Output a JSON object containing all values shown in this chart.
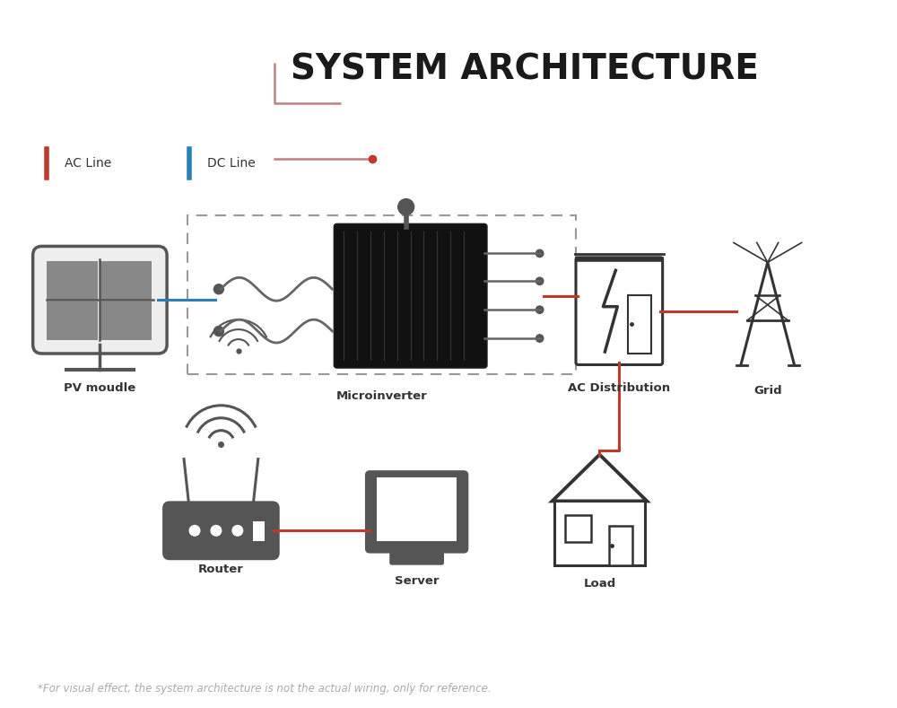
{
  "title": "SYSTEM ARCHITECTURE",
  "title_fontsize": 28,
  "title_color": "#1a1a1a",
  "background_color": "#ffffff",
  "ac_line_color": "#c0392b",
  "dc_line_color": "#2980b9",
  "icon_color": "#555555",
  "icon_dark_color": "#333333",
  "legend_ac": "AC Line",
  "legend_dc": "DC Line",
  "labels": {
    "pv": "PV moudle",
    "microinverter": "Microinverter",
    "ac_dist": "AC Distribution",
    "grid": "Grid",
    "router": "Router",
    "server": "Server",
    "load": "Load"
  },
  "footnote": "*For visual effect, the system architecture is not the actual wiring, only for reference.",
  "footnote_color": "#aaaaaa",
  "footnote_fontsize": 8.5,
  "fig_width": 10.0,
  "fig_height": 7.89
}
